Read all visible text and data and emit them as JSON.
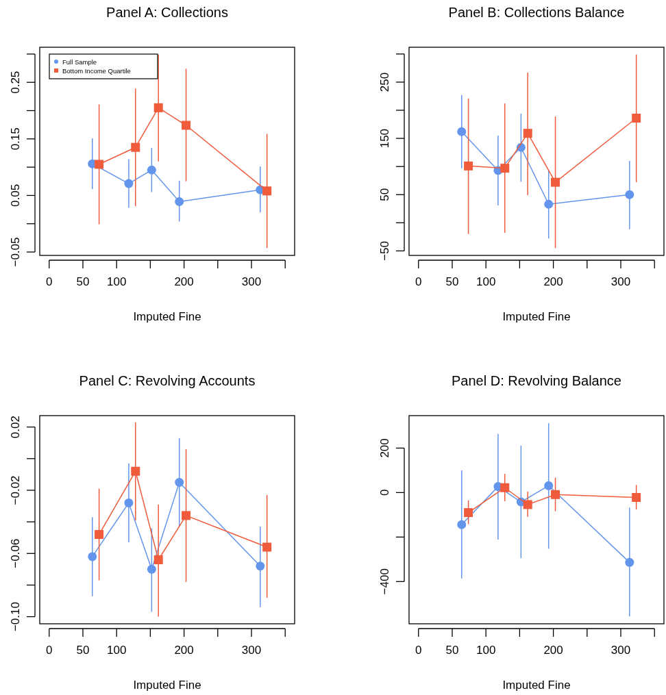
{
  "chart_data": [
    {
      "type": "line",
      "title": "Panel A: Collections",
      "xlabel": "Imputed Fine",
      "legend": "top left",
      "xlim": [
        -14,
        364
      ],
      "xticks": [
        0,
        50,
        100,
        {
          "value": 150,
          "label": null
        },
        200,
        {
          "value": 250,
          "label": null
        },
        300,
        {
          "value": 350,
          "label": null
        }
      ],
      "ylim": [
        -0.056,
        0.312
      ],
      "yticks": [
        -0.05,
        {
          "value": 0,
          "label": null
        },
        0.05,
        {
          "value": 0.1,
          "label": null
        },
        0.15,
        {
          "value": 0.2,
          "label": null
        },
        0.25,
        {
          "value": 0.3,
          "label": null
        }
      ],
      "series": [
        {
          "name": "Full Sample",
          "color": "#6495ed",
          "marker": "circle",
          "x": [
            64,
            118,
            152,
            193,
            313
          ],
          "values": [
            0.106,
            0.071,
            0.095,
            0.039,
            0.06
          ],
          "errors": [
            [
              0.061,
              0.151
            ],
            [
              0.028,
              0.114
            ],
            [
              0.056,
              0.134
            ],
            [
              0.004,
              0.076
            ],
            [
              0.02,
              0.101
            ]
          ]
        },
        {
          "name": "Bottom Income Quartile",
          "color": "#ef5b3b",
          "marker": "square",
          "x": [
            74,
            128,
            162,
            203,
            323
          ],
          "values": [
            0.105,
            0.135,
            0.205,
            0.174,
            0.058
          ],
          "errors": [
            [
              -0.001,
              0.211
            ],
            [
              0.031,
              0.239
            ],
            [
              0.11,
              0.299
            ],
            [
              0.075,
              0.274
            ],
            [
              -0.043,
              0.159
            ]
          ]
        }
      ]
    },
    {
      "type": "line",
      "title": "Panel B: Collections Balance",
      "xlabel": "Imputed Fine",
      "xlim": [
        -14,
        364
      ],
      "xticks": [
        0,
        50,
        100,
        {
          "value": 150,
          "label": null
        },
        200,
        {
          "value": 250,
          "label": null
        },
        300,
        {
          "value": 350,
          "label": null
        }
      ],
      "ylim": [
        -58,
        312
      ],
      "yticks": [
        -50,
        {
          "value": 0,
          "label": null
        },
        50,
        {
          "value": 100,
          "label": null
        },
        150,
        {
          "value": 200,
          "label": null
        },
        250,
        {
          "value": 300,
          "label": null
        }
      ],
      "series": [
        {
          "color": "#6495ed",
          "marker": "circle",
          "x": [
            64,
            118,
            152,
            193,
            313
          ],
          "values": [
            162,
            93,
            134,
            33,
            50
          ],
          "errors": [
            [
              97,
              227
            ],
            [
              31,
              155
            ],
            [
              73,
              194
            ],
            [
              -28,
              93
            ],
            [
              -11,
              110
            ]
          ]
        },
        {
          "color": "#ef5b3b",
          "marker": "square",
          "x": [
            74,
            128,
            162,
            203,
            323
          ],
          "values": [
            101,
            97,
            159,
            72,
            186
          ],
          "errors": [
            [
              -20,
              221
            ],
            [
              -18,
              212
            ],
            [
              49,
              267
            ],
            [
              -45,
              189
            ],
            [
              72,
              299
            ]
          ]
        }
      ]
    },
    {
      "type": "line",
      "title": "Panel C: Revolving Accounts",
      "xlabel": "Imputed Fine",
      "xlim": [
        -14,
        364
      ],
      "xticks": [
        0,
        50,
        100,
        {
          "value": 150,
          "label": null
        },
        200,
        {
          "value": 250,
          "label": null
        },
        300,
        {
          "value": 350,
          "label": null
        }
      ],
      "ylim": [
        -0.1045,
        0.0272
      ],
      "yticks": [
        {
          "value": -0.1,
          "label": "−0.10"
        },
        {
          "value": -0.08,
          "label": null
        },
        -0.06,
        {
          "value": -0.04,
          "label": null
        },
        -0.02,
        {
          "value": 0,
          "label": null
        },
        0.02
      ],
      "series": [
        {
          "color": "#6495ed",
          "marker": "circle",
          "x": [
            64,
            118,
            152,
            193,
            313
          ],
          "values": [
            -0.062,
            -0.028,
            -0.07,
            -0.015,
            -0.068
          ],
          "errors": [
            [
              -0.087,
              -0.037
            ],
            [
              -0.053,
              -0.003
            ],
            [
              -0.097,
              -0.044
            ],
            [
              -0.043,
              0.013
            ],
            [
              -0.094,
              -0.043
            ]
          ]
        },
        {
          "color": "#ef5b3b",
          "marker": "square",
          "x": [
            74,
            128,
            162,
            203,
            323
          ],
          "values": [
            -0.048,
            -0.008,
            -0.064,
            -0.036,
            -0.056
          ],
          "errors": [
            [
              -0.077,
              -0.019
            ],
            [
              -0.039,
              0.023
            ],
            [
              -0.1,
              -0.029
            ],
            [
              -0.078,
              0.006
            ],
            [
              -0.088,
              -0.023
            ]
          ]
        }
      ]
    },
    {
      "type": "line",
      "title": "Panel D: Revolving Balance",
      "xlabel": "Imputed Fine",
      "xlim": [
        -14,
        364
      ],
      "xticks": [
        0,
        50,
        100,
        {
          "value": 150,
          "label": null
        },
        200,
        {
          "value": 250,
          "label": null
        },
        300,
        {
          "value": 350,
          "label": null
        }
      ],
      "ylim": [
        -590,
        346
      ],
      "yticks": [
        -400,
        {
          "value": -200,
          "label": null
        },
        0,
        200
      ],
      "series": [
        {
          "color": "#6495ed",
          "marker": "circle",
          "x": [
            64,
            118,
            152,
            193,
            313
          ],
          "values": [
            -144,
            27,
            -42,
            31,
            -314
          ],
          "errors": [
            [
              -386,
              100
            ],
            [
              -211,
              264
            ],
            [
              -295,
              211
            ],
            [
              -252,
              312
            ],
            [
              -557,
              -68
            ]
          ]
        },
        {
          "color": "#ef5b3b",
          "marker": "square",
          "x": [
            74,
            128,
            162,
            203,
            323
          ],
          "values": [
            -90,
            22,
            -54,
            -9,
            -22
          ],
          "errors": [
            [
              -142,
              -35
            ],
            [
              -39,
              84
            ],
            [
              -109,
              4
            ],
            [
              -84,
              67
            ],
            [
              -76,
              34
            ]
          ]
        }
      ]
    }
  ]
}
